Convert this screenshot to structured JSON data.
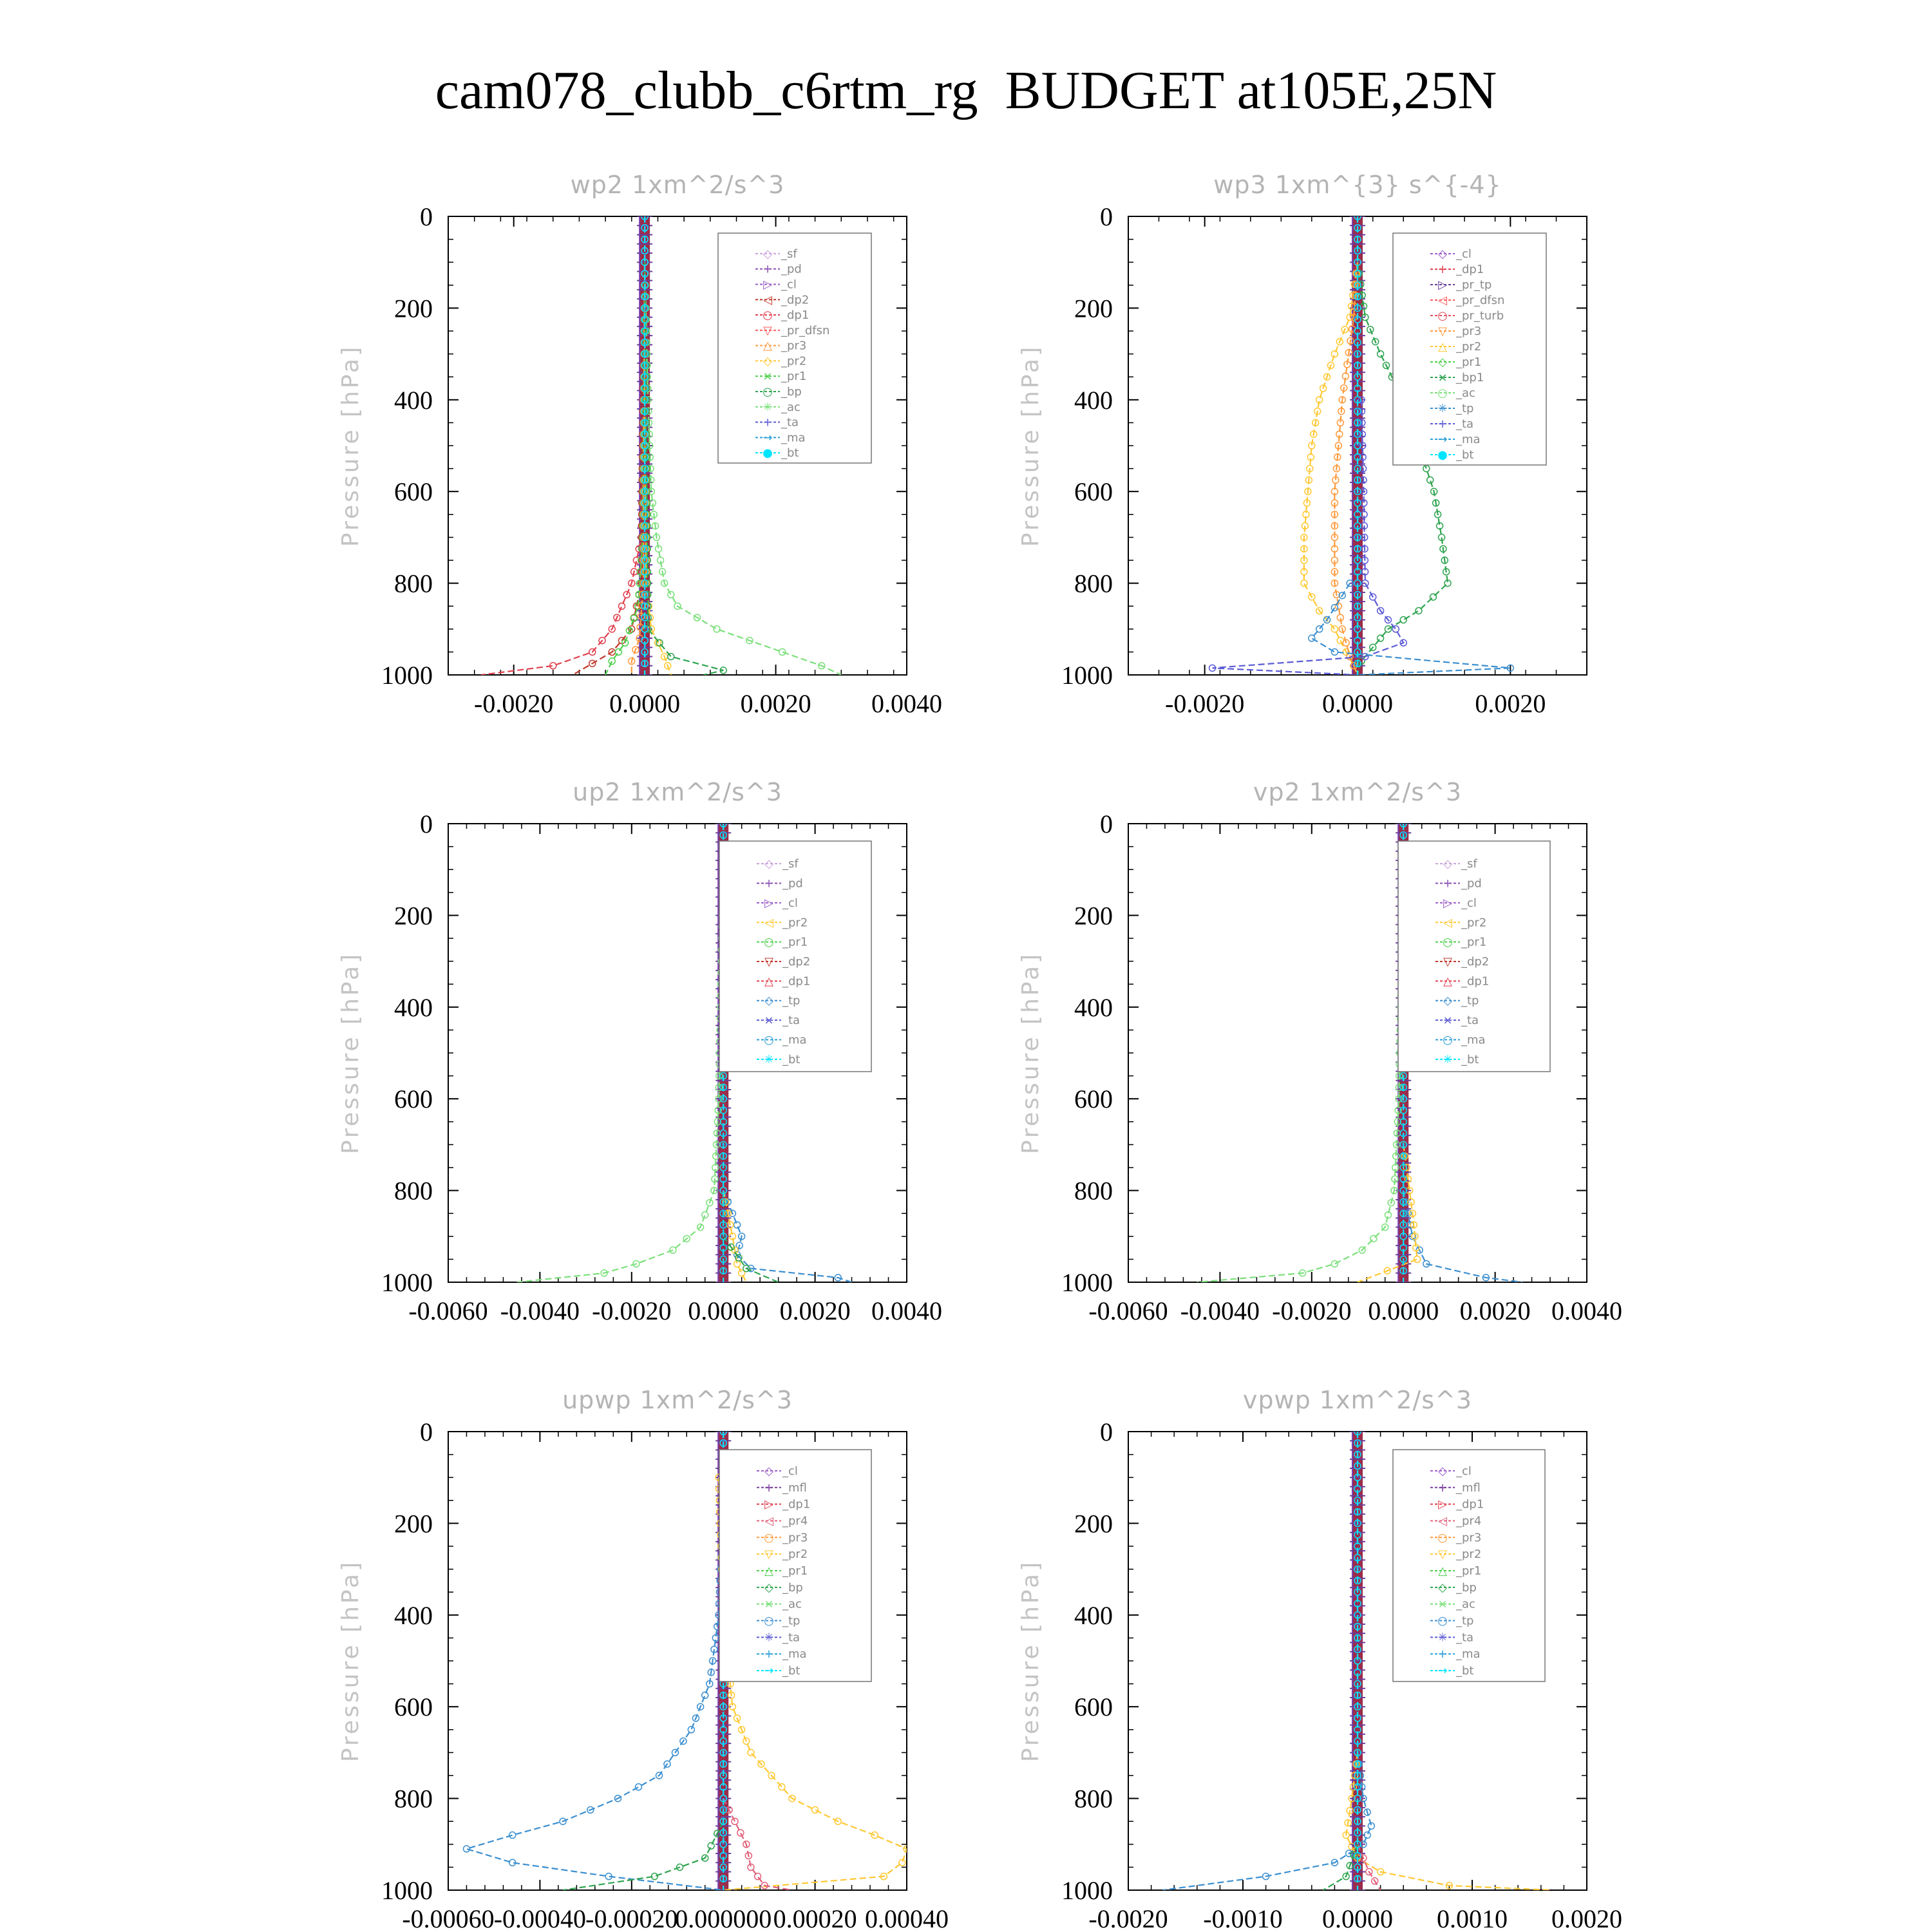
{
  "title": "cam078_clubb_c6rtm_rg  BUDGET at105E,25N",
  "colors": {
    "sf": "#c9a0dc",
    "pd": "#8a4fb0",
    "cl": "#9a5cc8",
    "mfl": "#7b3fa0",
    "dp2": "#c0392b",
    "dp1": "#e0404f",
    "pr_dfsn": "#ff5a5a",
    "pr3": "#ff9a3c",
    "pr2": "#ffc832",
    "pr1": "#4ccf4c",
    "bp": "#2ea44f",
    "ac": "#7be07b",
    "tp": "#3b8fd0",
    "ta": "#5b5bd6",
    "ma": "#2a9fd6",
    "bt": "#00e5ff",
    "pr_tp": "#6a3d9a",
    "pr_turb": "#e05060",
    "pr4": "#e0607a",
    "bp1": "#2ea44f"
  },
  "chart_data": [
    {
      "type": "line",
      "title": "wp2  1xm^2/s^3",
      "ylabel": "Pressure [hPa]",
      "xlim": [
        -0.003,
        0.004
      ],
      "ylim": [
        1000,
        0
      ],
      "xticks": [
        -0.002,
        0.0,
        0.002,
        0.004
      ],
      "xtick_labels": [
        "-0.0020",
        "0.0000",
        "0.0020",
        "0.0040"
      ],
      "yticks": [
        0,
        200,
        400,
        600,
        800,
        1000
      ],
      "ytick_labels": [
        "0",
        "200",
        "400",
        "600",
        "800",
        "1000"
      ],
      "legend": [
        "_sf",
        "_pd",
        "_cl",
        "_dp2",
        "_dp1",
        "_pr_dfsn",
        "_pr3",
        "_pr2",
        "_pr1",
        "_bp",
        "_ac",
        "_ta",
        "_ma",
        "_bt"
      ],
      "series": [
        {
          "name": "_ac",
          "color_key": "ac",
          "p": [
            100,
            400,
            600,
            700,
            800,
            850,
            900,
            950,
            980,
            1000
          ],
          "v": [
            0.0,
            5e-05,
            0.0001,
            0.00018,
            0.0003,
            0.0005,
            0.0011,
            0.0021,
            0.0027,
            0.003
          ]
        },
        {
          "name": "_dp1",
          "color_key": "dp1",
          "p": [
            100,
            700,
            800,
            850,
            900,
            950,
            980,
            1000
          ],
          "v": [
            0.0,
            -5e-05,
            -0.0002,
            -0.00035,
            -0.0005,
            -0.0008,
            -0.0014,
            -0.0025
          ]
        },
        {
          "name": "_dp2",
          "color_key": "dp2",
          "p": [
            100,
            800,
            900,
            950,
            1000
          ],
          "v": [
            0.0,
            -5e-05,
            -0.0002,
            -0.0005,
            -0.0011
          ]
        },
        {
          "name": "_pr1",
          "color_key": "pr1",
          "p": [
            100,
            700,
            850,
            930,
            970,
            1000
          ],
          "v": [
            0.0,
            -3e-05,
            -0.0001,
            -0.0003,
            -0.0005,
            -0.0006
          ]
        },
        {
          "name": "_pr2",
          "color_key": "pr2",
          "p": [
            100,
            800,
            900,
            960,
            1000
          ],
          "v": [
            0.0,
            2e-05,
            0.0001,
            0.0003,
            0.0004
          ]
        },
        {
          "name": "_pr3",
          "color_key": "pr3",
          "p": [
            100,
            800,
            920,
            970,
            1000
          ],
          "v": [
            0.0,
            -2e-05,
            -8e-05,
            -0.0002,
            -0.0002
          ]
        },
        {
          "name": "_bp",
          "color_key": "bp",
          "p": [
            100,
            900,
            960,
            990,
            1000
          ],
          "v": [
            0.0,
            5e-05,
            0.0004,
            0.0012,
            0.0009
          ]
        },
        {
          "name": "_sf",
          "color_key": "sf",
          "p": [
            0,
            1000
          ],
          "v": [
            0.0,
            0.0
          ]
        },
        {
          "name": "_pd",
          "color_key": "pd",
          "p": [
            0,
            1000
          ],
          "v": [
            0.0,
            0.0
          ]
        },
        {
          "name": "_cl",
          "color_key": "cl",
          "p": [
            0,
            1000
          ],
          "v": [
            0.0,
            0.0
          ]
        },
        {
          "name": "_bt",
          "color_key": "bt",
          "p": [
            0,
            1000
          ],
          "v": [
            0.0,
            0.0
          ]
        }
      ]
    },
    {
      "type": "line",
      "title": "wp3  1xm^{3} s^{-4}",
      "ylabel": "Pressure [hPa]",
      "xlim": [
        -0.003,
        0.003
      ],
      "ylim": [
        1000,
        0
      ],
      "xticks": [
        -0.002,
        0.0,
        0.002
      ],
      "xtick_labels": [
        "-0.0020",
        "0.0000",
        "0.0020"
      ],
      "yticks": [
        0,
        200,
        400,
        600,
        800,
        1000
      ],
      "ytick_labels": [
        "0",
        "200",
        "400",
        "600",
        "800",
        "1000"
      ],
      "legend": [
        "_cl",
        "_dp1",
        "_pr_tp",
        "_pr_dfsn",
        "_pr_turb",
        "_pr3",
        "_pr2",
        "_pr1",
        "_bp1",
        "_ac",
        "_tp",
        "_ta",
        "_ma",
        "_bt"
      ],
      "series": [
        {
          "name": "_bp1",
          "color_key": "bp1",
          "p": [
            100,
            220,
            300,
            400,
            500,
            600,
            700,
            800,
            860,
            900,
            940,
            970,
            1000
          ],
          "v": [
            0.0,
            0.0001,
            0.0003,
            0.0006,
            0.0008,
            0.001,
            0.0011,
            0.00118,
            0.0008,
            0.0004,
            0.0002,
            5e-05,
            0.0
          ]
        },
        {
          "name": "_pr1",
          "color_key": "pr2",
          "p": [
            100,
            220,
            300,
            400,
            500,
            600,
            700,
            800,
            860,
            900,
            950,
            980,
            1000
          ],
          "v": [
            0.0,
            -0.0001,
            -0.0003,
            -0.0005,
            -0.0006,
            -0.00065,
            -0.0007,
            -0.0007,
            -0.0005,
            -0.0003,
            -0.00015,
            -5e-05,
            0.0
          ]
        },
        {
          "name": "_pr2",
          "color_key": "pr3",
          "p": [
            100,
            220,
            400,
            600,
            800,
            900,
            960,
            1000
          ],
          "v": [
            0.0,
            -5e-05,
            -0.0002,
            -0.0003,
            -0.0003,
            -0.0002,
            -0.0001,
            0.0
          ]
        },
        {
          "name": "_ta",
          "color_key": "ta",
          "p": [
            400,
            600,
            800,
            860,
            900,
            930,
            960,
            985,
            1000
          ],
          "v": [
            5e-05,
            8e-05,
            0.0001,
            0.0003,
            0.0005,
            0.0006,
            0.0001,
            -0.0019,
            0.0
          ]
        },
        {
          "name": "_tp",
          "color_key": "tp",
          "p": [
            800,
            880,
            920,
            950,
            985,
            1000
          ],
          "v": [
            -0.0001,
            -0.0004,
            -0.0006,
            -0.0003,
            0.002,
            0.0
          ]
        },
        {
          "name": "_cl",
          "color_key": "cl",
          "p": [
            0,
            1000
          ],
          "v": [
            0.0,
            0.0
          ]
        },
        {
          "name": "_bt",
          "color_key": "bt",
          "p": [
            0,
            1000
          ],
          "v": [
            0.0,
            0.0
          ]
        }
      ]
    },
    {
      "type": "line",
      "title": "up2  1xm^2/s^3",
      "ylabel": "Pressure [hPa]",
      "xlim": [
        -0.006,
        0.004
      ],
      "ylim": [
        1000,
        0
      ],
      "xticks": [
        -0.006,
        -0.004,
        -0.002,
        0.0,
        0.002,
        0.004
      ],
      "xtick_labels": [
        "-0.0060",
        "-0.0040",
        "-0.0020",
        "0.0000",
        "0.0020",
        "0.0040"
      ],
      "yticks": [
        0,
        200,
        400,
        600,
        800,
        1000
      ],
      "ytick_labels": [
        "0",
        "200",
        "400",
        "600",
        "800",
        "1000"
      ],
      "legend": [
        "_sf",
        "_pd",
        "_cl",
        "_pr2",
        "_pr1",
        "_dp2",
        "_dp1",
        "_tp",
        "_ta",
        "_ma",
        "_bt"
      ],
      "series": [
        {
          "name": "_dp1",
          "color_key": "ac",
          "p": [
            100,
            600,
            800,
            880,
            930,
            960,
            980,
            1000
          ],
          "v": [
            0.0,
            -0.0001,
            -0.0002,
            -0.0005,
            -0.0011,
            -0.0019,
            -0.0026,
            -0.0045
          ]
        },
        {
          "name": "_tp",
          "color_key": "tp",
          "p": [
            800,
            850,
            900,
            940,
            970,
            990,
            1000
          ],
          "v": [
            0.0,
            0.0002,
            0.0004,
            0.0003,
            0.0006,
            0.0025,
            0.0028
          ]
        },
        {
          "name": "_pr1",
          "color_key": "pr2",
          "p": [
            800,
            900,
            960,
            1000
          ],
          "v": [
            0.0,
            0.0002,
            0.0003,
            0.0005
          ]
        },
        {
          "name": "_dp2",
          "color_key": "bp",
          "p": [
            900,
            970,
            1000
          ],
          "v": [
            0.0,
            0.0005,
            0.0012
          ]
        },
        {
          "name": "_sf",
          "color_key": "dp2",
          "p": [
            0,
            1000
          ],
          "v": [
            0.0,
            0.0
          ]
        },
        {
          "name": "_bt",
          "color_key": "bt",
          "p": [
            0,
            1000
          ],
          "v": [
            0.0,
            0.0
          ]
        }
      ]
    },
    {
      "type": "line",
      "title": "vp2  1xm^2/s^3",
      "ylabel": "Pressure [hPa]",
      "xlim": [
        -0.006,
        0.004
      ],
      "ylim": [
        1000,
        0
      ],
      "xticks": [
        -0.006,
        -0.004,
        -0.002,
        0.0,
        0.002,
        0.004
      ],
      "xtick_labels": [
        "-0.0060",
        "-0.0040",
        "-0.0020",
        "0.0000",
        "0.0020",
        "0.0040"
      ],
      "yticks": [
        0,
        200,
        400,
        600,
        800,
        1000
      ],
      "ytick_labels": [
        "0",
        "200",
        "400",
        "600",
        "800",
        "1000"
      ],
      "legend": [
        "_sf",
        "_pd",
        "_cl",
        "_pr2",
        "_pr1",
        "_dp2",
        "_dp1",
        "_tp",
        "_ta",
        "_ma",
        "_bt"
      ],
      "series": [
        {
          "name": "_dp1",
          "color_key": "ac",
          "p": [
            100,
            600,
            800,
            880,
            930,
            960,
            980,
            1000
          ],
          "v": [
            0.0,
            -0.0001,
            -0.0002,
            -0.0004,
            -0.0009,
            -0.0015,
            -0.0022,
            -0.0045
          ]
        },
        {
          "name": "_tp",
          "color_key": "tp",
          "p": [
            800,
            900,
            960,
            990,
            1000
          ],
          "v": [
            0.0,
            0.0002,
            0.0005,
            0.0018,
            0.0026
          ]
        },
        {
          "name": "_pr1",
          "color_key": "pr2",
          "p": [
            700,
            850,
            950,
            1000
          ],
          "v": [
            0.0,
            0.0002,
            0.0003,
            -0.001
          ]
        },
        {
          "name": "_sf",
          "color_key": "dp2",
          "p": [
            0,
            1000
          ],
          "v": [
            0.0,
            0.0
          ]
        },
        {
          "name": "_bt",
          "color_key": "bt",
          "p": [
            0,
            1000
          ],
          "v": [
            0.0,
            0.0
          ]
        }
      ]
    },
    {
      "type": "line",
      "title": "upwp  1xm^2/s^3",
      "ylabel": "Pressure [hPa]",
      "xlim": [
        -0.0006,
        0.0004
      ],
      "ylim": [
        1000,
        0
      ],
      "xticks": [
        -0.0006,
        -0.0004,
        -0.0002,
        0.0,
        0.0002,
        0.0004
      ],
      "xtick_labels": [
        "-0.00060",
        "-0.00040",
        "-0.00020",
        "0.000000",
        "0.00020",
        "0.00040"
      ],
      "yticks": [
        0,
        200,
        400,
        600,
        800,
        1000
      ],
      "ytick_labels": [
        "0",
        "200",
        "400",
        "600",
        "800",
        "1000"
      ],
      "legend": [
        "_cl",
        "_mfl",
        "_dp1",
        "_pr4",
        "_pr3",
        "_pr2",
        "_pr1",
        "_bp",
        "_ac",
        "_tp",
        "_ta",
        "_ma",
        "_bt"
      ],
      "series": [
        {
          "name": "_tp",
          "color_key": "tp",
          "p": [
            100,
            150,
            400,
            550,
            650,
            750,
            800,
            850,
            880,
            910,
            940,
            970,
            1000
          ],
          "v": [
            2e-05,
            0.0,
            -1e-05,
            -3e-05,
            -7e-05,
            -0.00014,
            -0.00023,
            -0.00035,
            -0.00046,
            -0.00056,
            -0.00046,
            -0.00025,
            0.0
          ]
        },
        {
          "name": "_pr1",
          "color_key": "pr2",
          "p": [
            100,
            400,
            600,
            700,
            800,
            850,
            880,
            910,
            940,
            970,
            1000
          ],
          "v": [
            -1e-05,
            0.0,
            2e-05,
            6e-05,
            0.00015,
            0.00025,
            0.00033,
            0.0004,
            0.00039,
            0.00035,
            0.0
          ]
        },
        {
          "name": "_bp",
          "color_key": "bp",
          "p": [
            850,
            930,
            970,
            1000
          ],
          "v": [
            0.0,
            -4e-05,
            -0.00015,
            -0.00035
          ]
        },
        {
          "name": "_pr4",
          "color_key": "pr4",
          "p": [
            800,
            900,
            950,
            990,
            1000
          ],
          "v": [
            0.0,
            5e-05,
            6e-05,
            9e-05,
            0.00015
          ]
        },
        {
          "name": "_cl",
          "color_key": "cl",
          "p": [
            0,
            1000
          ],
          "v": [
            0.0,
            0.0
          ]
        },
        {
          "name": "_bt",
          "color_key": "bt",
          "p": [
            0,
            1000
          ],
          "v": [
            0.0,
            0.0
          ]
        }
      ]
    },
    {
      "type": "line",
      "title": "vpwp  1xm^2/s^3",
      "ylabel": "Pressure [hPa]",
      "xlim": [
        -0.002,
        0.002
      ],
      "ylim": [
        1000,
        0
      ],
      "xticks": [
        -0.002,
        -0.001,
        0.0,
        0.001,
        0.002
      ],
      "xtick_labels": [
        "-0.0020",
        "-0.0010",
        "0.0000",
        "0.0010",
        "0.0020"
      ],
      "yticks": [
        0,
        200,
        400,
        600,
        800,
        1000
      ],
      "ytick_labels": [
        "0",
        "200",
        "400",
        "600",
        "800",
        "1000"
      ],
      "legend": [
        "_cl",
        "_mfl",
        "_dp1",
        "_pr4",
        "_pr3",
        "_pr2",
        "_pr1",
        "_bp",
        "_ac",
        "_tp",
        "_ta",
        "_ma",
        "_bt"
      ],
      "series": [
        {
          "name": "_tp",
          "color_key": "tp",
          "p": [
            700,
            800,
            860,
            900,
            940,
            970,
            1000
          ],
          "v": [
            0.0,
            5e-05,
            0.00012,
            5e-05,
            -0.0002,
            -0.0008,
            -0.0017
          ]
        },
        {
          "name": "_pr1",
          "color_key": "pr2",
          "p": [
            700,
            800,
            880,
            930,
            960,
            990,
            1000
          ],
          "v": [
            0.0,
            -5e-05,
            -0.0001,
            0.0,
            0.0002,
            0.0008,
            0.0017
          ]
        },
        {
          "name": "_pr4",
          "color_key": "pr4",
          "p": [
            900,
            960,
            1000
          ],
          "v": [
            0.0,
            0.0001,
            0.0002
          ]
        },
        {
          "name": "_bp",
          "color_key": "bp",
          "p": [
            900,
            970,
            1000
          ],
          "v": [
            0.0,
            -0.0001,
            -0.0003
          ]
        },
        {
          "name": "_cl",
          "color_key": "cl",
          "p": [
            0,
            1000
          ],
          "v": [
            0.0,
            0.0
          ]
        },
        {
          "name": "_bt",
          "color_key": "bt",
          "p": [
            0,
            1000
          ],
          "v": [
            0.0,
            0.0
          ]
        }
      ]
    }
  ]
}
